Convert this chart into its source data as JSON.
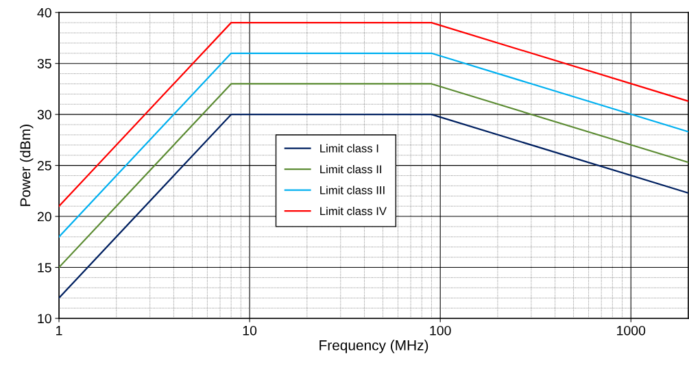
{
  "chart_data": {
    "type": "line",
    "xlabel": "Frequency (MHz)",
    "ylabel": "Power (dBm)",
    "x": [
      1,
      8,
      90,
      2000
    ],
    "series": [
      {
        "name": "Limit class I",
        "color": "#002060",
        "values": [
          12,
          30,
          30,
          22.3
        ]
      },
      {
        "name": "Limit class II",
        "color": "#5b8b32",
        "values": [
          15,
          33,
          33,
          25.3
        ]
      },
      {
        "name": "Limit class III",
        "color": "#00b0f0",
        "values": [
          18,
          36,
          36,
          28.3
        ]
      },
      {
        "name": "Limit class IV",
        "color": "#ff0000",
        "values": [
          21,
          39,
          39,
          31.3
        ]
      }
    ],
    "log": "x",
    "xlim": [
      1,
      2000
    ],
    "xticks": [
      1,
      10,
      100,
      1000
    ],
    "ylim": [
      10,
      40
    ],
    "yticks": [
      10,
      15,
      20,
      25,
      30,
      35,
      40
    ],
    "grid": true,
    "legend": "center",
    "marker": "none",
    "line_style": "solid"
  }
}
